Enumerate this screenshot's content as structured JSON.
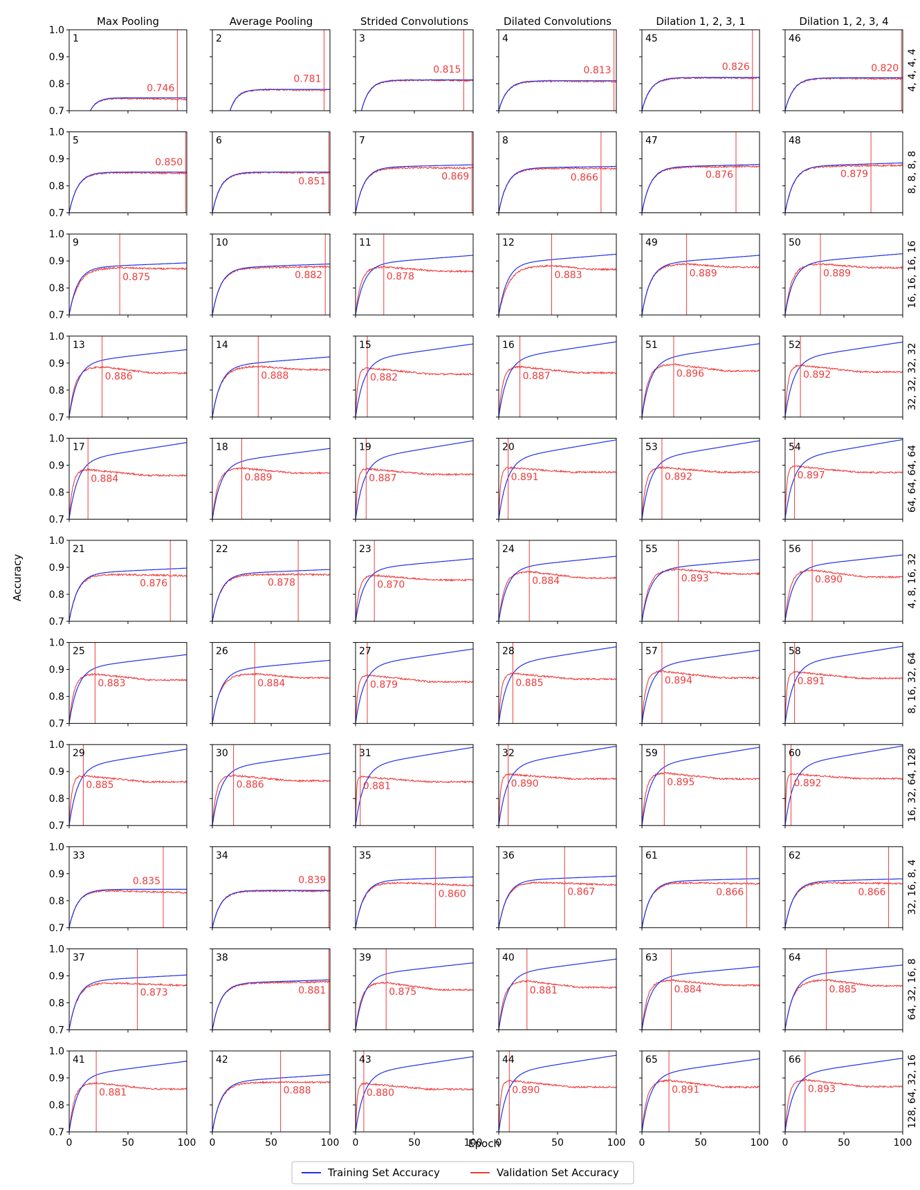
{
  "legend": {
    "placement": "bottom-center",
    "training_label": "Training Set Accuracy",
    "validation_label": "Validation Set Accuracy",
    "training_color": "#1f2ee8",
    "validation_color": "#ee3b3b"
  },
  "chart_data": {
    "type": "line",
    "ylabel": "Accuracy",
    "xlabel": "Epoch",
    "xlim": [
      0,
      100
    ],
    "ylim": [
      0.7,
      1.0
    ],
    "xticks": [
      "0",
      "50",
      "100"
    ],
    "yticks": [
      "0.7",
      "0.8",
      "0.9",
      "1.0"
    ],
    "grid": false,
    "columns": [
      "Max Pooling",
      "Average Pooling",
      "Strided Convolutions",
      "Dilated Convolutions",
      "Dilation 1, 2, 3, 1",
      "Dilation 1, 2, 3, 4"
    ],
    "rows": [
      "4, 4, 4, 4",
      "8, 8, 8, 8",
      "16, 16, 16, 16",
      "32, 32, 32, 32",
      "64, 64, 64, 64",
      "4, 8, 16, 32",
      "8, 16, 32, 64",
      "16, 32, 64, 128",
      "32, 16, 8, 4",
      "64, 32, 16, 8",
      "128, 64, 32, 16"
    ],
    "series_names": [
      "Training Set Accuracy",
      "Validation Set Accuracy"
    ],
    "panels": [
      {
        "id": "1",
        "best": "0.746",
        "best_epoch": 92,
        "train_final": 0.748,
        "val_final": 0.742,
        "peak_epoch": 0,
        "val_peak": 0.746,
        "start_epoch": 18,
        "label_pos": "above"
      },
      {
        "id": "2",
        "best": "0.781",
        "best_epoch": 95,
        "train_final": 0.779,
        "val_final": 0.776,
        "peak_epoch": 0,
        "val_peak": 0.781,
        "start_epoch": 15,
        "label_pos": "above"
      },
      {
        "id": "3",
        "best": "0.815",
        "best_epoch": 92,
        "train_final": 0.814,
        "val_final": 0.812,
        "peak_epoch": 0,
        "val_peak": 0.815,
        "start_epoch": 5,
        "label_pos": "above"
      },
      {
        "id": "4",
        "best": "0.813",
        "best_epoch": 98,
        "train_final": 0.811,
        "val_final": 0.808,
        "peak_epoch": 0,
        "val_peak": 0.813,
        "start_epoch": 0,
        "label_pos": "above"
      },
      {
        "id": "45",
        "best": "0.826",
        "best_epoch": 94,
        "train_final": 0.823,
        "val_final": 0.821,
        "peak_epoch": 0,
        "val_peak": 0.826,
        "start_epoch": 0,
        "label_pos": "above"
      },
      {
        "id": "46",
        "best": "0.820",
        "best_epoch": 99,
        "train_final": 0.822,
        "val_final": 0.818,
        "peak_epoch": 0,
        "val_peak": 0.82,
        "start_epoch": 0,
        "label_pos": "above"
      },
      {
        "id": "5",
        "best": "0.850",
        "best_epoch": 99,
        "train_final": 0.851,
        "val_final": 0.847,
        "peak_epoch": 0,
        "val_peak": 0.85,
        "start_epoch": 0,
        "label_pos": "above"
      },
      {
        "id": "6",
        "best": "0.851",
        "best_epoch": 99,
        "train_final": 0.851,
        "val_final": 0.848,
        "peak_epoch": 0,
        "val_peak": 0.851,
        "start_epoch": 0,
        "label_pos": "below"
      },
      {
        "id": "7",
        "best": "0.869",
        "best_epoch": 99,
        "train_final": 0.878,
        "val_final": 0.866,
        "peak_epoch": 0,
        "val_peak": 0.869,
        "start_epoch": 0,
        "label_pos": "below"
      },
      {
        "id": "8",
        "best": "0.866",
        "best_epoch": 87,
        "train_final": 0.872,
        "val_final": 0.864,
        "peak_epoch": 0,
        "val_peak": 0.866,
        "start_epoch": 0,
        "label_pos": "below"
      },
      {
        "id": "47",
        "best": "0.876",
        "best_epoch": 80,
        "train_final": 0.879,
        "val_final": 0.872,
        "peak_epoch": 0,
        "val_peak": 0.876,
        "start_epoch": 0,
        "label_pos": "below"
      },
      {
        "id": "48",
        "best": "0.879",
        "best_epoch": 73,
        "train_final": 0.885,
        "val_final": 0.876,
        "peak_epoch": 0,
        "val_peak": 0.879,
        "start_epoch": 0,
        "label_pos": "below"
      },
      {
        "id": "9",
        "best": "0.875",
        "best_epoch": 43,
        "train_final": 0.893,
        "val_final": 0.871,
        "peak_epoch": 43,
        "val_peak": 0.875,
        "start_epoch": 0,
        "label_pos": "below"
      },
      {
        "id": "10",
        "best": "0.882",
        "best_epoch": 96,
        "train_final": 0.889,
        "val_final": 0.879,
        "peak_epoch": 0,
        "val_peak": 0.882,
        "start_epoch": 0,
        "label_pos": "below"
      },
      {
        "id": "11",
        "best": "0.878",
        "best_epoch": 24,
        "train_final": 0.921,
        "val_final": 0.862,
        "peak_epoch": 24,
        "val_peak": 0.878,
        "start_epoch": 0,
        "label_pos": "below"
      },
      {
        "id": "12",
        "best": "0.883",
        "best_epoch": 45,
        "train_final": 0.925,
        "val_final": 0.869,
        "peak_epoch": 45,
        "val_peak": 0.883,
        "start_epoch": 0,
        "label_pos": "below"
      },
      {
        "id": "49",
        "best": "0.889",
        "best_epoch": 38,
        "train_final": 0.921,
        "val_final": 0.877,
        "peak_epoch": 38,
        "val_peak": 0.889,
        "start_epoch": 0,
        "label_pos": "below"
      },
      {
        "id": "50",
        "best": "0.889",
        "best_epoch": 30,
        "train_final": 0.927,
        "val_final": 0.875,
        "peak_epoch": 30,
        "val_peak": 0.889,
        "start_epoch": 0,
        "label_pos": "below"
      },
      {
        "id": "13",
        "best": "0.886",
        "best_epoch": 28,
        "train_final": 0.95,
        "val_final": 0.863,
        "peak_epoch": 28,
        "val_peak": 0.886,
        "start_epoch": 0,
        "label_pos": "below"
      },
      {
        "id": "14",
        "best": "0.888",
        "best_epoch": 39,
        "train_final": 0.923,
        "val_final": 0.876,
        "peak_epoch": 39,
        "val_peak": 0.888,
        "start_epoch": 0,
        "label_pos": "below"
      },
      {
        "id": "15",
        "best": "0.882",
        "best_epoch": 10,
        "train_final": 0.971,
        "val_final": 0.859,
        "peak_epoch": 10,
        "val_peak": 0.882,
        "start_epoch": 0,
        "label_pos": "below"
      },
      {
        "id": "16",
        "best": "0.887",
        "best_epoch": 18,
        "train_final": 0.979,
        "val_final": 0.864,
        "peak_epoch": 18,
        "val_peak": 0.887,
        "start_epoch": 0,
        "label_pos": "below"
      },
      {
        "id": "51",
        "best": "0.896",
        "best_epoch": 27,
        "train_final": 0.972,
        "val_final": 0.871,
        "peak_epoch": 27,
        "val_peak": 0.896,
        "start_epoch": 0,
        "label_pos": "below"
      },
      {
        "id": "52",
        "best": "0.892",
        "best_epoch": 13,
        "train_final": 0.978,
        "val_final": 0.867,
        "peak_epoch": 13,
        "val_peak": 0.892,
        "start_epoch": 0,
        "label_pos": "below"
      },
      {
        "id": "17",
        "best": "0.884",
        "best_epoch": 16,
        "train_final": 0.984,
        "val_final": 0.862,
        "peak_epoch": 16,
        "val_peak": 0.884,
        "start_epoch": 0,
        "label_pos": "below"
      },
      {
        "id": "18",
        "best": "0.889",
        "best_epoch": 25,
        "train_final": 0.962,
        "val_final": 0.871,
        "peak_epoch": 25,
        "val_peak": 0.889,
        "start_epoch": 0,
        "label_pos": "below"
      },
      {
        "id": "19",
        "best": "0.887",
        "best_epoch": 9,
        "train_final": 0.991,
        "val_final": 0.866,
        "peak_epoch": 9,
        "val_peak": 0.887,
        "start_epoch": 0,
        "label_pos": "below"
      },
      {
        "id": "20",
        "best": "0.891",
        "best_epoch": 8,
        "train_final": 0.994,
        "val_final": 0.874,
        "peak_epoch": 8,
        "val_peak": 0.891,
        "start_epoch": 0,
        "label_pos": "below"
      },
      {
        "id": "53",
        "best": "0.892",
        "best_epoch": 17,
        "train_final": 0.991,
        "val_final": 0.874,
        "peak_epoch": 17,
        "val_peak": 0.892,
        "start_epoch": 0,
        "label_pos": "below"
      },
      {
        "id": "54",
        "best": "0.897",
        "best_epoch": 8,
        "train_final": 0.995,
        "val_final": 0.873,
        "peak_epoch": 8,
        "val_peak": 0.897,
        "start_epoch": 0,
        "label_pos": "below"
      },
      {
        "id": "21",
        "best": "0.876",
        "best_epoch": 86,
        "train_final": 0.897,
        "val_final": 0.869,
        "peak_epoch": 0,
        "val_peak": 0.876,
        "start_epoch": 0,
        "label_pos": "below"
      },
      {
        "id": "22",
        "best": "0.878",
        "best_epoch": 73,
        "train_final": 0.892,
        "val_final": 0.873,
        "peak_epoch": 0,
        "val_peak": 0.878,
        "start_epoch": 0,
        "label_pos": "below"
      },
      {
        "id": "23",
        "best": "0.870",
        "best_epoch": 16,
        "train_final": 0.932,
        "val_final": 0.853,
        "peak_epoch": 16,
        "val_peak": 0.87,
        "start_epoch": 0,
        "label_pos": "below"
      },
      {
        "id": "24",
        "best": "0.884",
        "best_epoch": 26,
        "train_final": 0.941,
        "val_final": 0.861,
        "peak_epoch": 26,
        "val_peak": 0.884,
        "start_epoch": 0,
        "label_pos": "below"
      },
      {
        "id": "55",
        "best": "0.893",
        "best_epoch": 31,
        "train_final": 0.929,
        "val_final": 0.876,
        "peak_epoch": 31,
        "val_peak": 0.893,
        "start_epoch": 0,
        "label_pos": "below"
      },
      {
        "id": "56",
        "best": "0.890",
        "best_epoch": 23,
        "train_final": 0.946,
        "val_final": 0.864,
        "peak_epoch": 23,
        "val_peak": 0.89,
        "start_epoch": 0,
        "label_pos": "below"
      },
      {
        "id": "25",
        "best": "0.883",
        "best_epoch": 22,
        "train_final": 0.955,
        "val_final": 0.861,
        "peak_epoch": 22,
        "val_peak": 0.883,
        "start_epoch": 0,
        "label_pos": "below"
      },
      {
        "id": "26",
        "best": "0.884",
        "best_epoch": 36,
        "train_final": 0.934,
        "val_final": 0.869,
        "peak_epoch": 36,
        "val_peak": 0.884,
        "start_epoch": 0,
        "label_pos": "below"
      },
      {
        "id": "27",
        "best": "0.879",
        "best_epoch": 10,
        "train_final": 0.976,
        "val_final": 0.854,
        "peak_epoch": 10,
        "val_peak": 0.879,
        "start_epoch": 0,
        "label_pos": "below"
      },
      {
        "id": "28",
        "best": "0.885",
        "best_epoch": 12,
        "train_final": 0.984,
        "val_final": 0.864,
        "peak_epoch": 12,
        "val_peak": 0.885,
        "start_epoch": 0,
        "label_pos": "below"
      },
      {
        "id": "57",
        "best": "0.894",
        "best_epoch": 17,
        "train_final": 0.971,
        "val_final": 0.869,
        "peak_epoch": 17,
        "val_peak": 0.894,
        "start_epoch": 0,
        "label_pos": "below"
      },
      {
        "id": "58",
        "best": "0.891",
        "best_epoch": 8,
        "train_final": 0.986,
        "val_final": 0.867,
        "peak_epoch": 8,
        "val_peak": 0.891,
        "start_epoch": 0,
        "label_pos": "below"
      },
      {
        "id": "29",
        "best": "0.885",
        "best_epoch": 12,
        "train_final": 0.983,
        "val_final": 0.862,
        "peak_epoch": 12,
        "val_peak": 0.885,
        "start_epoch": 0,
        "label_pos": "below"
      },
      {
        "id": "30",
        "best": "0.886",
        "best_epoch": 18,
        "train_final": 0.968,
        "val_final": 0.866,
        "peak_epoch": 18,
        "val_peak": 0.886,
        "start_epoch": 0,
        "label_pos": "below"
      },
      {
        "id": "31",
        "best": "0.881",
        "best_epoch": 4,
        "train_final": 0.99,
        "val_final": 0.862,
        "peak_epoch": 4,
        "val_peak": 0.881,
        "start_epoch": 0,
        "label_pos": "below"
      },
      {
        "id": "32",
        "best": "0.890",
        "best_epoch": 8,
        "train_final": 0.994,
        "val_final": 0.873,
        "peak_epoch": 8,
        "val_peak": 0.89,
        "start_epoch": 0,
        "label_pos": "below"
      },
      {
        "id": "59",
        "best": "0.895",
        "best_epoch": 19,
        "train_final": 0.99,
        "val_final": 0.873,
        "peak_epoch": 19,
        "val_peak": 0.895,
        "start_epoch": 0,
        "label_pos": "below"
      },
      {
        "id": "60",
        "best": "0.892",
        "best_epoch": 5,
        "train_final": 0.995,
        "val_final": 0.874,
        "peak_epoch": 5,
        "val_peak": 0.892,
        "start_epoch": 0,
        "label_pos": "below"
      },
      {
        "id": "33",
        "best": "0.835",
        "best_epoch": 80,
        "train_final": 0.842,
        "val_final": 0.829,
        "peak_epoch": 0,
        "val_peak": 0.835,
        "start_epoch": 0,
        "label_pos": "above"
      },
      {
        "id": "34",
        "best": "0.839",
        "best_epoch": 99,
        "train_final": 0.838,
        "val_final": 0.835,
        "peak_epoch": 0,
        "val_peak": 0.839,
        "start_epoch": 0,
        "label_pos": "above"
      },
      {
        "id": "35",
        "best": "0.860",
        "best_epoch": 68,
        "train_final": 0.888,
        "val_final": 0.856,
        "peak_epoch": 0,
        "val_peak": 0.86,
        "start_epoch": 0,
        "label_pos": "below"
      },
      {
        "id": "36",
        "best": "0.867",
        "best_epoch": 56,
        "train_final": 0.891,
        "val_final": 0.858,
        "peak_epoch": 0,
        "val_peak": 0.867,
        "start_epoch": 0,
        "label_pos": "below"
      },
      {
        "id": "61",
        "best": "0.866",
        "best_epoch": 89,
        "train_final": 0.882,
        "val_final": 0.862,
        "peak_epoch": 0,
        "val_peak": 0.866,
        "start_epoch": 0,
        "label_pos": "below"
      },
      {
        "id": "62",
        "best": "0.866",
        "best_epoch": 88,
        "train_final": 0.881,
        "val_final": 0.863,
        "peak_epoch": 0,
        "val_peak": 0.866,
        "start_epoch": 0,
        "label_pos": "below"
      },
      {
        "id": "37",
        "best": "0.873",
        "best_epoch": 58,
        "train_final": 0.903,
        "val_final": 0.864,
        "peak_epoch": 0,
        "val_peak": 0.873,
        "start_epoch": 0,
        "label_pos": "below"
      },
      {
        "id": "38",
        "best": "0.881",
        "best_epoch": 99,
        "train_final": 0.885,
        "val_final": 0.878,
        "peak_epoch": 0,
        "val_peak": 0.881,
        "start_epoch": 0,
        "label_pos": "below"
      },
      {
        "id": "39",
        "best": "0.875",
        "best_epoch": 26,
        "train_final": 0.948,
        "val_final": 0.848,
        "peak_epoch": 26,
        "val_peak": 0.875,
        "start_epoch": 0,
        "label_pos": "below"
      },
      {
        "id": "40",
        "best": "0.881",
        "best_epoch": 24,
        "train_final": 0.962,
        "val_final": 0.857,
        "peak_epoch": 24,
        "val_peak": 0.881,
        "start_epoch": 0,
        "label_pos": "below"
      },
      {
        "id": "63",
        "best": "0.884",
        "best_epoch": 25,
        "train_final": 0.934,
        "val_final": 0.865,
        "peak_epoch": 25,
        "val_peak": 0.884,
        "start_epoch": 0,
        "label_pos": "below"
      },
      {
        "id": "64",
        "best": "0.885",
        "best_epoch": 35,
        "train_final": 0.94,
        "val_final": 0.863,
        "peak_epoch": 35,
        "val_peak": 0.885,
        "start_epoch": 0,
        "label_pos": "below"
      },
      {
        "id": "41",
        "best": "0.881",
        "best_epoch": 23,
        "train_final": 0.962,
        "val_final": 0.859,
        "peak_epoch": 23,
        "val_peak": 0.881,
        "start_epoch": 0,
        "label_pos": "below"
      },
      {
        "id": "42",
        "best": "0.888",
        "best_epoch": 58,
        "train_final": 0.912,
        "val_final": 0.884,
        "peak_epoch": 0,
        "val_peak": 0.888,
        "start_epoch": 0,
        "label_pos": "below"
      },
      {
        "id": "43",
        "best": "0.880",
        "best_epoch": 7,
        "train_final": 0.979,
        "val_final": 0.858,
        "peak_epoch": 7,
        "val_peak": 0.88,
        "start_epoch": 0,
        "label_pos": "below"
      },
      {
        "id": "44",
        "best": "0.890",
        "best_epoch": 9,
        "train_final": 0.984,
        "val_final": 0.866,
        "peak_epoch": 9,
        "val_peak": 0.89,
        "start_epoch": 0,
        "label_pos": "below"
      },
      {
        "id": "65",
        "best": "0.891",
        "best_epoch": 23,
        "train_final": 0.971,
        "val_final": 0.866,
        "peak_epoch": 23,
        "val_peak": 0.891,
        "start_epoch": 0,
        "label_pos": "below"
      },
      {
        "id": "66",
        "best": "0.893",
        "best_epoch": 17,
        "train_final": 0.973,
        "val_final": 0.868,
        "peak_epoch": 17,
        "val_peak": 0.893,
        "start_epoch": 0,
        "label_pos": "below"
      }
    ]
  }
}
